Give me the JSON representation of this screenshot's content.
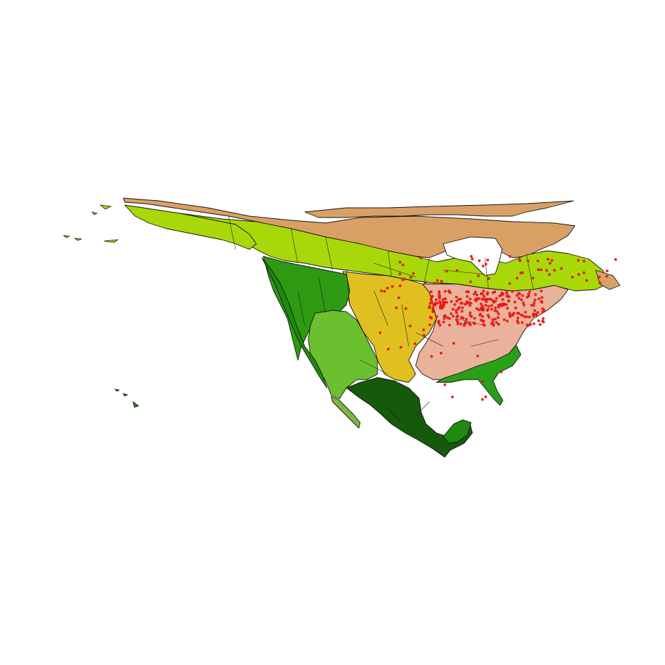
{
  "map": {
    "colors": {
      "tundra": "#d9a066",
      "boreal": "#a8d80a",
      "temperate_forest": "#eab29a",
      "great_plains": "#e0c020",
      "western_forest": "#2e9a12",
      "desert": "#6cc030",
      "tropical": "#1f8a0f",
      "tropical_dry": "#7ab840",
      "highlands": "#155a0a",
      "coastal_plain": "#28a018",
      "points": "#ff1a1a",
      "outline": "#111111",
      "background": "#ffffff"
    },
    "point_cloud": {
      "northeast_cluster": 260,
      "labrador_coast": 28,
      "northern_ontario_quebec": 22,
      "plains_scatter": 18,
      "southeast": 10
    }
  }
}
